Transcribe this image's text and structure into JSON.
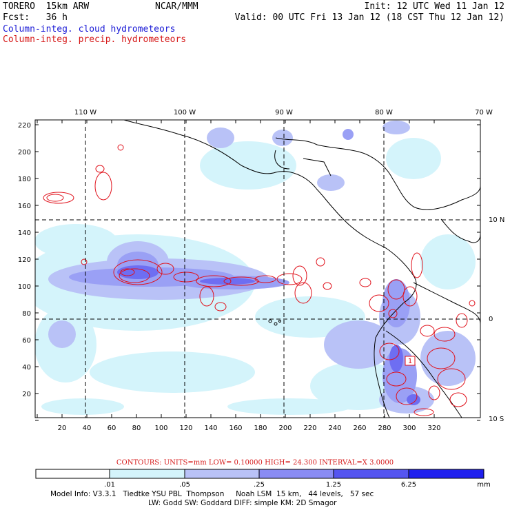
{
  "header": {
    "model": "TORERO  15km ARW",
    "org": "NCAR/MMM",
    "init": "Init: 12 UTC Wed 11 Jan 12",
    "fcst": "Fcst:   36 h",
    "valid": "Valid: 00 UTC Fri 13 Jan 12 (18 CST Thu 12 Jan 12)",
    "field_cloud": "Column-integ. cloud hydrometeors",
    "field_precip": "Column-integ. precip. hydrometeors"
  },
  "colors": {
    "cloud_label": "#1a1ad6",
    "precip_label": "#d61a1a",
    "contour": "#e0101a",
    "coast": "#000000",
    "shade_levels": [
      "#ffffff",
      "#d4f4fb",
      "#b9c2f7",
      "#9aa0f5",
      "#6e6ef2",
      "#4444ee",
      "#1f1ff0"
    ]
  },
  "map": {
    "lon_labels": [
      "110 W",
      "100 W",
      "90 W",
      "80 W",
      "70 W"
    ],
    "lat_labels": [
      "10 N",
      "0",
      "10 S"
    ],
    "x_ticks": [
      "20",
      "40",
      "60",
      "80",
      "100",
      "120",
      "140",
      "160",
      "180",
      "200",
      "220",
      "240",
      "260",
      "280",
      "300",
      "320"
    ],
    "y_ticks": [
      "220",
      "200",
      "180",
      "160",
      "140",
      "120",
      "100",
      "80",
      "60",
      "40",
      "20"
    ],
    "contour_box_label": "1"
  },
  "contour_info": "CONTOURS:  UNITS=mm  LOW= 0.10000     HIGH=  24.300     INTERVAL=X  3.0000",
  "colorbar": {
    "labels": [
      ".01",
      ".05",
      ".25",
      "1.25",
      "6.25"
    ],
    "units": "mm"
  },
  "footer": {
    "line1": "Model Info: V3.3.1   Tiedtke YSU PBL  Thompson     Noah LSM  15 km,   44 levels,   57 sec",
    "line2": "LW: Godd SW: Goddard DIFF: simple KM: 2D Smagor"
  }
}
